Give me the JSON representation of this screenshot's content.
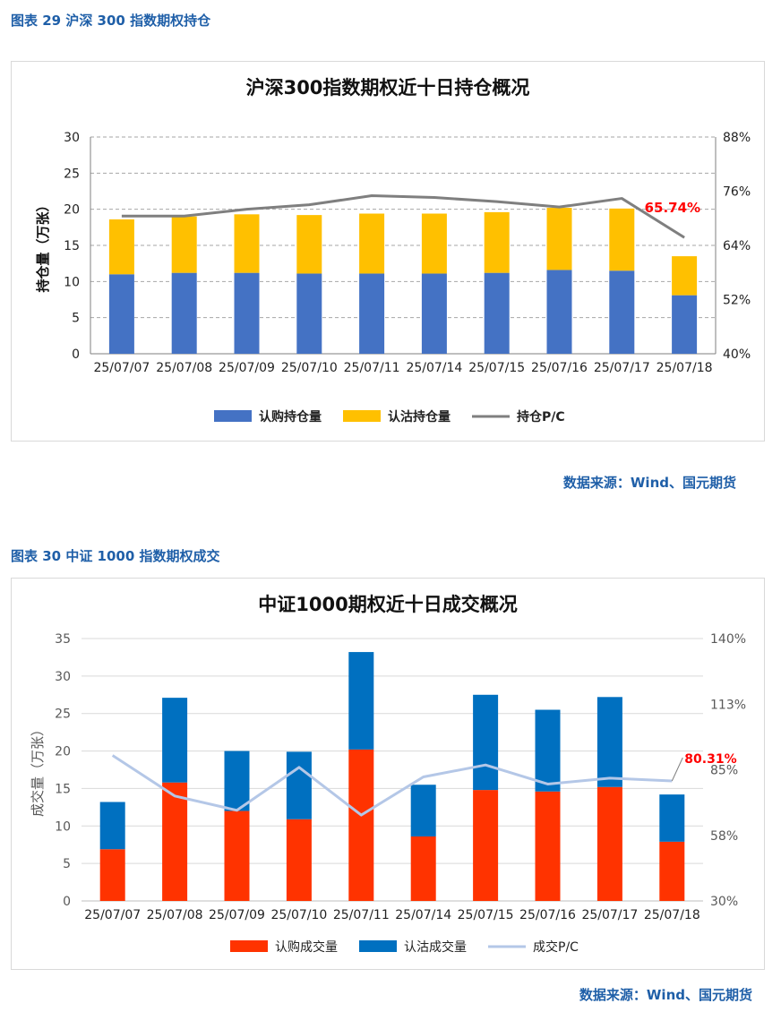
{
  "figure1": {
    "caption": "图表 29 沪深 300 指数期权持仓",
    "source": "数据来源：Wind、国元期货",
    "chart_data": {
      "type": "bar",
      "stacked": true,
      "title": "沪深300指数期权近十日持仓概况",
      "ylabel": "持仓量（万张）",
      "ylim": [
        0,
        30
      ],
      "yticks": [
        "0",
        "5",
        "10",
        "15",
        "20",
        "25",
        "30"
      ],
      "y2lim": [
        40,
        88
      ],
      "y2ticks": [
        "40%",
        "52%",
        "64%",
        "76%",
        "88%"
      ],
      "grid": true,
      "legend_position": "bottom",
      "categories": [
        "25/07/07",
        "25/07/08",
        "25/07/09",
        "25/07/10",
        "25/07/11",
        "25/07/14",
        "25/07/15",
        "25/07/16",
        "25/07/17",
        "25/07/18"
      ],
      "series": [
        {
          "name": "认购持仓量",
          "kind": "bar",
          "color": "#4472c4",
          "values": [
            11.0,
            11.2,
            11.2,
            11.1,
            11.1,
            11.1,
            11.2,
            11.6,
            11.5,
            8.1
          ]
        },
        {
          "name": "认沽持仓量",
          "kind": "bar",
          "color": "#ffc000",
          "values": [
            7.6,
            7.8,
            8.1,
            8.1,
            8.3,
            8.3,
            8.4,
            8.6,
            8.6,
            5.4
          ]
        },
        {
          "name": "持仓P/C",
          "kind": "line",
          "axis": "right",
          "color": "#7f7f7f",
          "values": [
            70.5,
            70.5,
            72.0,
            73.0,
            75.0,
            74.6,
            73.7,
            72.5,
            74.4,
            65.74
          ]
        }
      ],
      "annotation": {
        "text": "65.74%",
        "color": "#ff0000",
        "index": 9
      }
    }
  },
  "figure2": {
    "caption": "图表 30 中证 1000 指数期权成交",
    "source": "数据来源：Wind、国元期货",
    "chart_data": {
      "type": "bar",
      "stacked": true,
      "title": "中证1000期权近十日成交概况",
      "ylabel": "成交量（万张）",
      "ylim": [
        0,
        35
      ],
      "yticks": [
        "0",
        "5",
        "10",
        "15",
        "20",
        "25",
        "30",
        "35"
      ],
      "y2lim": [
        30,
        140
      ],
      "y2ticks": [
        "30%",
        "58%",
        "85%",
        "113%",
        "140%"
      ],
      "grid": true,
      "legend_position": "bottom",
      "categories": [
        "25/07/07",
        "25/07/08",
        "25/07/09",
        "25/07/10",
        "25/07/11",
        "25/07/14",
        "25/07/15",
        "25/07/16",
        "25/07/17",
        "25/07/18"
      ],
      "series": [
        {
          "name": "认购成交量",
          "kind": "bar",
          "color": "#ff3300",
          "values": [
            6.9,
            15.8,
            12.0,
            10.9,
            20.2,
            8.6,
            14.8,
            14.6,
            15.2,
            7.9
          ]
        },
        {
          "name": "认沽成交量",
          "kind": "bar",
          "color": "#0070c0",
          "values": [
            6.3,
            11.3,
            8.0,
            9.0,
            13.0,
            6.9,
            12.7,
            10.9,
            12.0,
            6.3
          ]
        },
        {
          "name": "成交P/C",
          "kind": "line",
          "axis": "right",
          "color": "#b4c7e7",
          "values": [
            91,
            74,
            68,
            86,
            66,
            82,
            87,
            79,
            81.5,
            80.31
          ]
        }
      ],
      "annotation": {
        "text": "80.31%",
        "color": "#ff0000",
        "index": 9
      }
    }
  }
}
